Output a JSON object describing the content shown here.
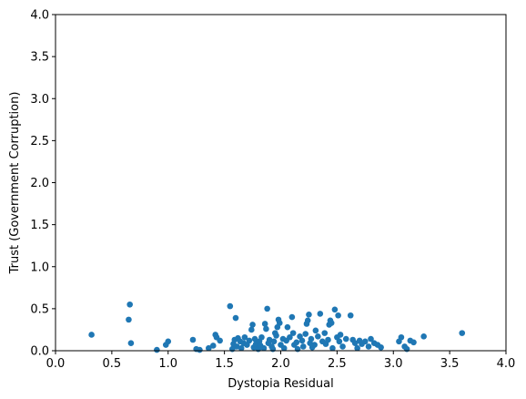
{
  "chart_data": {
    "type": "scatter",
    "title": "",
    "xlabel": "Dystopia Residual",
    "ylabel": "Trust (Government Corruption)",
    "xlim": [
      0.0,
      4.0
    ],
    "ylim": [
      0.0,
      4.0
    ],
    "xticks": [
      "0.0",
      "0.5",
      "1.0",
      "1.5",
      "2.0",
      "2.5",
      "3.0",
      "3.5",
      "4.0"
    ],
    "yticks": [
      "0.0",
      "0.5",
      "1.0",
      "1.5",
      "2.0",
      "2.5",
      "3.0",
      "3.5",
      "4.0"
    ],
    "grid": false,
    "marker_color": "#1f77b4",
    "points": [
      [
        0.32,
        0.19
      ],
      [
        0.65,
        0.37
      ],
      [
        0.66,
        0.55
      ],
      [
        0.67,
        0.09
      ],
      [
        0.9,
        0.01
      ],
      [
        0.98,
        0.07
      ],
      [
        1.0,
        0.11
      ],
      [
        1.22,
        0.13
      ],
      [
        1.25,
        0.02
      ],
      [
        1.28,
        0.01
      ],
      [
        1.36,
        0.03
      ],
      [
        1.4,
        0.06
      ],
      [
        1.42,
        0.19
      ],
      [
        1.43,
        0.16
      ],
      [
        1.46,
        0.12
      ],
      [
        1.55,
        0.53
      ],
      [
        1.57,
        0.02
      ],
      [
        1.58,
        0.08
      ],
      [
        1.59,
        0.13
      ],
      [
        1.6,
        0.39
      ],
      [
        1.61,
        0.05
      ],
      [
        1.62,
        0.15
      ],
      [
        1.64,
        0.11
      ],
      [
        1.65,
        0.03
      ],
      [
        1.67,
        0.09
      ],
      [
        1.68,
        0.16
      ],
      [
        1.7,
        0.07
      ],
      [
        1.72,
        0.12
      ],
      [
        1.74,
        0.25
      ],
      [
        1.75,
        0.31
      ],
      [
        1.76,
        0.04
      ],
      [
        1.77,
        0.14
      ],
      [
        1.78,
        0.08
      ],
      [
        1.8,
        0.02
      ],
      [
        1.81,
        0.11
      ],
      [
        1.82,
        0.06
      ],
      [
        1.83,
        0.16
      ],
      [
        1.85,
        0.03
      ],
      [
        1.86,
        0.32
      ],
      [
        1.87,
        0.26
      ],
      [
        1.88,
        0.5
      ],
      [
        1.89,
        0.09
      ],
      [
        1.9,
        0.13
      ],
      [
        1.92,
        0.05
      ],
      [
        1.93,
        0.02
      ],
      [
        1.94,
        0.11
      ],
      [
        1.95,
        0.21
      ],
      [
        1.96,
        0.18
      ],
      [
        1.97,
        0.28
      ],
      [
        1.98,
        0.37
      ],
      [
        1.99,
        0.33
      ],
      [
        2.0,
        0.07
      ],
      [
        2.02,
        0.14
      ],
      [
        2.03,
        0.03
      ],
      [
        2.05,
        0.12
      ],
      [
        2.06,
        0.28
      ],
      [
        2.08,
        0.16
      ],
      [
        2.1,
        0.4
      ],
      [
        2.11,
        0.21
      ],
      [
        2.12,
        0.07
      ],
      [
        2.14,
        0.1
      ],
      [
        2.15,
        0.02
      ],
      [
        2.17,
        0.17
      ],
      [
        2.19,
        0.12
      ],
      [
        2.2,
        0.05
      ],
      [
        2.22,
        0.2
      ],
      [
        2.23,
        0.32
      ],
      [
        2.24,
        0.36
      ],
      [
        2.25,
        0.43
      ],
      [
        2.26,
        0.09
      ],
      [
        2.27,
        0.14
      ],
      [
        2.28,
        0.04
      ],
      [
        2.3,
        0.07
      ],
      [
        2.31,
        0.24
      ],
      [
        2.33,
        0.17
      ],
      [
        2.35,
        0.44
      ],
      [
        2.37,
        0.11
      ],
      [
        2.39,
        0.21
      ],
      [
        2.4,
        0.08
      ],
      [
        2.42,
        0.13
      ],
      [
        2.43,
        0.31
      ],
      [
        2.44,
        0.36
      ],
      [
        2.45,
        0.33
      ],
      [
        2.46,
        0.03
      ],
      [
        2.48,
        0.49
      ],
      [
        2.5,
        0.16
      ],
      [
        2.51,
        0.42
      ],
      [
        2.52,
        0.11
      ],
      [
        2.53,
        0.19
      ],
      [
        2.55,
        0.05
      ],
      [
        2.58,
        0.14
      ],
      [
        2.62,
        0.42
      ],
      [
        2.64,
        0.13
      ],
      [
        2.66,
        0.09
      ],
      [
        2.68,
        0.03
      ],
      [
        2.7,
        0.12
      ],
      [
        2.72,
        0.08
      ],
      [
        2.75,
        0.11
      ],
      [
        2.78,
        0.05
      ],
      [
        2.8,
        0.14
      ],
      [
        2.83,
        0.09
      ],
      [
        2.86,
        0.07
      ],
      [
        2.89,
        0.04
      ],
      [
        3.05,
        0.11
      ],
      [
        3.07,
        0.16
      ],
      [
        3.1,
        0.05
      ],
      [
        3.12,
        0.02
      ],
      [
        3.15,
        0.12
      ],
      [
        3.18,
        0.1
      ],
      [
        3.27,
        0.17
      ],
      [
        3.61,
        0.21
      ]
    ]
  }
}
